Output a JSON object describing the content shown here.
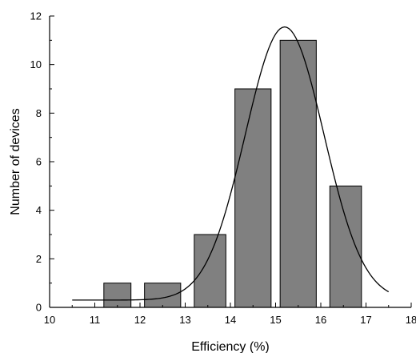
{
  "chart_data": {
    "type": "bar",
    "title": "",
    "xlabel": "Efficiency (%)",
    "ylabel": "Number of devices",
    "xlim": [
      10,
      18
    ],
    "ylim": [
      0,
      12
    ],
    "x_ticks": [
      "10",
      "11",
      "12",
      "13",
      "14",
      "15",
      "16",
      "17",
      "18"
    ],
    "y_ticks": [
      "0",
      "2",
      "4",
      "6",
      "8",
      "10",
      "12"
    ],
    "grid": false,
    "legend": "none",
    "bars": [
      {
        "x_start": 11.2,
        "x_end": 11.8,
        "value": 1
      },
      {
        "x_start": 12.1,
        "x_end": 12.9,
        "value": 1
      },
      {
        "x_start": 13.2,
        "x_end": 13.9,
        "value": 3
      },
      {
        "x_start": 14.1,
        "x_end": 14.9,
        "value": 9
      },
      {
        "x_start": 15.1,
        "x_end": 15.9,
        "value": 11
      },
      {
        "x_start": 16.2,
        "x_end": 16.9,
        "value": 5
      }
    ],
    "fit_curve": {
      "type": "gaussian",
      "baseline": 0.3,
      "amplitude": 11.25,
      "center": 15.2,
      "sigma": 0.87,
      "x_range": [
        10.5,
        17.5
      ]
    },
    "colors": {
      "bar_fill": "#808080",
      "bar_stroke": "#000000",
      "curve": "#000000"
    }
  }
}
